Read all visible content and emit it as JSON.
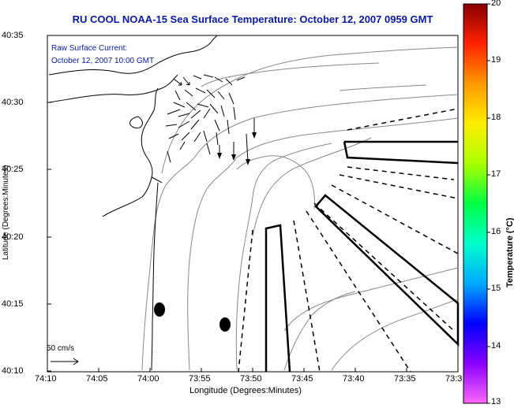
{
  "title": "RU COOL  NOAA-15  Sea Surface Temperature:  October 12, 2007 0959 GMT",
  "annotation": {
    "line1": "Raw Surface Current:",
    "line2": "October 12, 2007 10:00 GMT"
  },
  "axes": {
    "xlabel": "Longitude (Degrees:Minutes)",
    "ylabel": "Latitude (Degrees:Minutes)",
    "xticks": [
      "74:10",
      "74:05",
      "74:00",
      "73:55",
      "73:50",
      "73:45",
      "73:40",
      "73:35",
      "73:3"
    ],
    "yticks": [
      "40:35",
      "40:30",
      "40:25",
      "40:20",
      "40:15",
      "40:10"
    ]
  },
  "colorbar": {
    "label": "Temperature (°C)",
    "ticks": [
      "20",
      "19",
      "18",
      "17",
      "16",
      "15",
      "14",
      "13"
    ],
    "min": 13,
    "max": 20,
    "colors": [
      "#ff66ff",
      "#8800ff",
      "#0000ff",
      "#00aaff",
      "#00ffcc",
      "#00ff44",
      "#aaff00",
      "#ffee00",
      "#ff9900",
      "#ff2200",
      "#880000"
    ]
  },
  "scale_bar": {
    "label": "50 cm/s"
  },
  "map_colors": {
    "coast": "#000000",
    "bathymetry": "#888888",
    "vector": "#000000"
  }
}
